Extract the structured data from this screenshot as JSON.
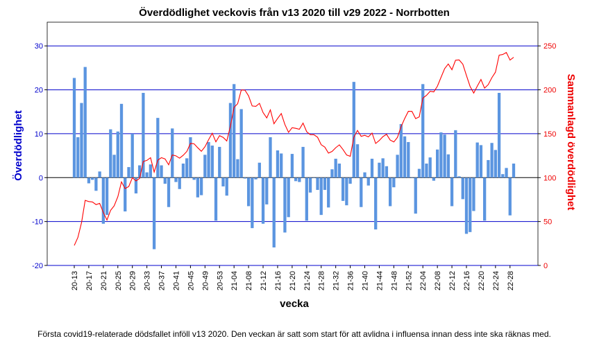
{
  "chart_data": {
    "type": "bar-line",
    "title": "Överdödlighet veckovis från v13 2020 till v29 2022 - Norrbotten",
    "x_label": "vecka",
    "y_label": "Överdödlighet",
    "y2_label": "Sammanlagd överdödlighet",
    "footnote": "Första covid19-relaterade dödsfallet inföll v13 2020. Den veckan är satt som start för att avlidna i influensa innan dess inte ska räknas med.",
    "categories": [
      "20-13",
      null,
      null,
      null,
      "20-17",
      null,
      null,
      null,
      "20-21",
      null,
      null,
      null,
      "20-25",
      null,
      null,
      null,
      "20-29",
      null,
      null,
      null,
      "20-33",
      null,
      null,
      null,
      "20-37",
      null,
      null,
      null,
      "20-41",
      null,
      null,
      null,
      "20-45",
      null,
      null,
      null,
      "20-49",
      null,
      null,
      null,
      "20-53",
      null,
      null,
      null,
      "21-04",
      null,
      null,
      null,
      "21-08",
      null,
      null,
      null,
      "21-12",
      null,
      null,
      null,
      "21-16",
      null,
      null,
      null,
      "21-20",
      null,
      null,
      null,
      "21-24",
      null,
      null,
      null,
      "21-28",
      null,
      null,
      null,
      "21-32",
      null,
      null,
      null,
      "21-36",
      null,
      null,
      null,
      "21-40",
      null,
      null,
      null,
      "21-44",
      null,
      null,
      null,
      "21-48",
      null,
      null,
      null,
      "21-52",
      null,
      null,
      null,
      "22-04",
      null,
      null,
      null,
      "22-08",
      null,
      null,
      null,
      "22-12",
      null,
      null,
      null,
      "22-16",
      null,
      null,
      null,
      "22-20",
      null,
      null,
      null,
      "22-24",
      null,
      null,
      null,
      "22-28",
      null
    ],
    "series": [
      {
        "name": "Överdödlighet",
        "color": "#5b95e0",
        "values": [
          22.7,
          9.2,
          17,
          25.2,
          -1.3,
          -0.5,
          -3,
          1.4,
          -10.5,
          -8.5,
          11,
          5.2,
          10.5,
          16.8,
          -7.7,
          2.4,
          10,
          -3.6,
          2.8,
          19.3,
          1.2,
          3,
          -16.3,
          13.6,
          2.8,
          -1.4,
          -6.7,
          11.2,
          -1,
          -2.6,
          3.2,
          4.4,
          9.2,
          -0.5,
          -4.5,
          -4,
          5.2,
          8.1,
          7.3,
          -9.8,
          7,
          -2,
          -4.1,
          17,
          21.3,
          4.2,
          15.6,
          -0.2,
          -6.5,
          -11.5,
          -0.4,
          3.4,
          -10.5,
          -6.1,
          9.2,
          -15.9,
          6.2,
          5.5,
          -12.5,
          -9,
          5.4,
          -0.8,
          -1,
          7,
          -9.8,
          -3.4,
          -0.1,
          -2.8,
          -8.5,
          -2.8,
          -6.8,
          1.9,
          4.3,
          3.2,
          -5.3,
          -6.3,
          -1.4,
          21.8,
          7.6,
          -6.7,
          1.2,
          -1.8,
          4.3,
          -11.8,
          3.4,
          4.4,
          2.6,
          -6.5,
          -2.2,
          5.2,
          12.2,
          9.4,
          8.1,
          -0.1,
          -8.2,
          2,
          21.3,
          3.2,
          4.6,
          -0.7,
          6.4,
          10.3,
          9.8,
          5.3,
          -6.5,
          10.8,
          0.3,
          -4.9,
          -12.8,
          -12.4,
          -7.6,
          8,
          7.4,
          -9.8,
          4,
          7.9,
          6.3,
          19.3,
          0.8,
          2.2,
          -8.6,
          3.2
        ]
      },
      {
        "name": "Sammanlagd överdödlighet",
        "color": "#ff0000",
        "axis": "y2",
        "values": [
          22.7,
          31.9,
          48.9,
          74.1,
          72.8,
          72.3,
          69.3,
          70.7,
          60.2,
          51.7,
          62.7,
          67.9,
          78.4,
          95.2,
          87.5,
          89.9,
          99.9,
          96.3,
          99.1,
          118.4,
          119.6,
          122.6,
          106.3,
          119.9,
          122.7,
          121.3,
          114.6,
          125.8,
          124.8,
          122.2,
          125.4,
          129.8,
          139,
          138.5,
          134,
          130,
          135.2,
          143.3,
          150.6,
          140.8,
          147.8,
          145.8,
          141.7,
          158.7,
          180,
          184.2,
          199.8,
          199.6,
          193.1,
          181.6,
          181.2,
          184.6,
          174.1,
          168,
          177.2,
          161.3,
          167.5,
          173,
          160.5,
          151.5,
          156.9,
          156.1,
          155.1,
          162.1,
          152.3,
          148.9,
          148.8,
          146,
          137.5,
          134.7,
          127.9,
          129.8,
          134.1,
          137.3,
          132,
          125.7,
          124.3,
          146.1,
          153.7,
          147,
          148.2,
          146.4,
          150.7,
          138.9,
          142.3,
          146.7,
          149.3,
          142.8,
          140.6,
          145.8,
          158,
          167.4,
          175.5,
          175.4,
          167.2,
          169.2,
          190.5,
          193.7,
          198.3,
          197.6,
          204,
          214.3,
          224.1,
          229.4,
          222.9,
          233.7,
          234,
          229.1,
          216.3,
          203.9,
          196.3,
          204.3,
          211.7,
          201.9,
          205.9,
          213.8,
          220.1,
          239.4,
          240.2,
          242.4,
          233.8,
          237
        ]
      }
    ],
    "ylim": [
      -20,
      35.4
    ],
    "yticks": [
      -20,
      -10,
      0,
      10,
      20,
      30
    ],
    "y2lim": [
      0,
      277
    ],
    "y2ticks": [
      0,
      50,
      100,
      150,
      200,
      250
    ],
    "grid": true
  }
}
